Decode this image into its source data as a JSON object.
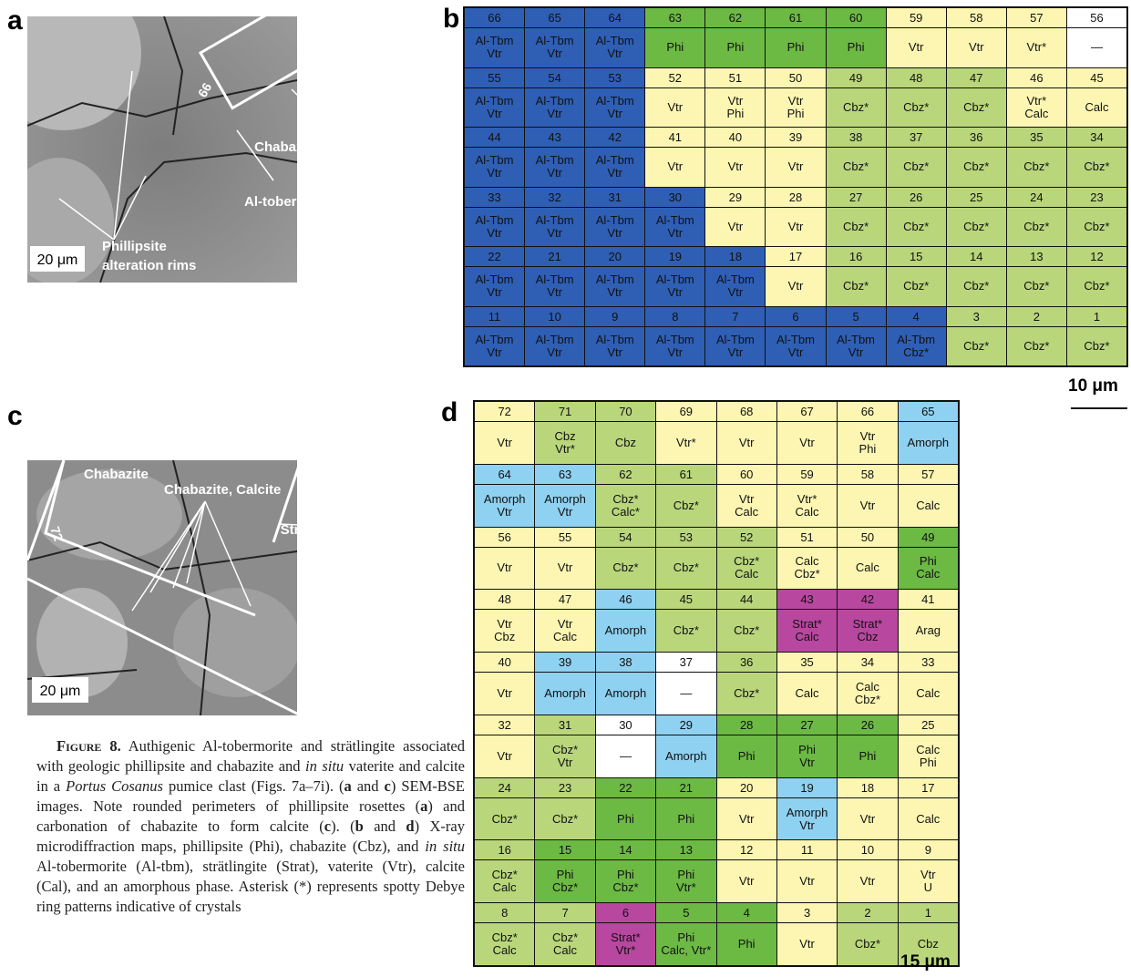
{
  "panel_a": {
    "label": "a",
    "annotations": {
      "box": "66",
      "chabazite": "Chabazite",
      "tobermorite": "Al-tobermorite",
      "phillipsite": "Phillipsite",
      "phillipsite2": "alteration rims",
      "scale": "20 μm"
    }
  },
  "panel_b": {
    "label": "b",
    "scale": "10 μm",
    "rows": [
      [
        {
          "n": 66,
          "t": "Al-Tbm\nVtr",
          "c": "#2f5fb5"
        },
        {
          "n": 65,
          "t": "Al-Tbm\nVtr",
          "c": "#2f5fb5"
        },
        {
          "n": 64,
          "t": "Al-Tbm\nVtr",
          "c": "#2f5fb5"
        },
        {
          "n": 63,
          "t": "Phi",
          "c": "#6cb944"
        },
        {
          "n": 62,
          "t": "Phi",
          "c": "#6cb944"
        },
        {
          "n": 61,
          "t": "Phi",
          "c": "#6cb944"
        },
        {
          "n": 60,
          "t": "Phi",
          "c": "#6cb944"
        },
        {
          "n": 59,
          "t": "Vtr",
          "c": "#fdf6b2"
        },
        {
          "n": 58,
          "t": "Vtr",
          "c": "#fdf6b2"
        },
        {
          "n": 57,
          "t": "Vtr*",
          "c": "#fdf6b2"
        },
        {
          "n": 56,
          "t": "—",
          "c": "#ffffff"
        }
      ],
      [
        {
          "n": 55,
          "t": "Al-Tbm\nVtr",
          "c": "#2f5fb5"
        },
        {
          "n": 54,
          "t": "Al-Tbm\nVtr",
          "c": "#2f5fb5"
        },
        {
          "n": 53,
          "t": "Al-Tbm\nVtr",
          "c": "#2f5fb5"
        },
        {
          "n": 52,
          "t": "Vtr",
          "c": "#fdf6b2"
        },
        {
          "n": 51,
          "t": "Vtr\nPhi",
          "c": "#fdf6b2"
        },
        {
          "n": 50,
          "t": "Vtr\nPhi",
          "c": "#fdf6b2"
        },
        {
          "n": 49,
          "t": "Cbz*",
          "c": "#b9d67b"
        },
        {
          "n": 48,
          "t": "Cbz*",
          "c": "#b9d67b"
        },
        {
          "n": 47,
          "t": "Cbz*",
          "c": "#b9d67b"
        },
        {
          "n": 46,
          "t": "Vtr*\nCalc",
          "c": "#fdf6b2"
        },
        {
          "n": 45,
          "t": "Calc",
          "c": "#fdf6b2"
        }
      ],
      [
        {
          "n": 44,
          "t": "Al-Tbm\nVtr",
          "c": "#2f5fb5"
        },
        {
          "n": 43,
          "t": "Al-Tbm\nVtr",
          "c": "#2f5fb5"
        },
        {
          "n": 42,
          "t": "Al-Tbm\nVtr",
          "c": "#2f5fb5"
        },
        {
          "n": 41,
          "t": "Vtr",
          "c": "#fdf6b2"
        },
        {
          "n": 40,
          "t": "Vtr",
          "c": "#fdf6b2"
        },
        {
          "n": 39,
          "t": "Vtr",
          "c": "#fdf6b2"
        },
        {
          "n": 38,
          "t": "Cbz*",
          "c": "#b9d67b"
        },
        {
          "n": 37,
          "t": "Cbz*",
          "c": "#b9d67b"
        },
        {
          "n": 36,
          "t": "Cbz*",
          "c": "#b9d67b"
        },
        {
          "n": 35,
          "t": "Cbz*",
          "c": "#b9d67b"
        },
        {
          "n": 34,
          "t": "Cbz*",
          "c": "#b9d67b"
        }
      ],
      [
        {
          "n": 33,
          "t": "Al-Tbm\nVtr",
          "c": "#2f5fb5"
        },
        {
          "n": 32,
          "t": "Al-Tbm\nVtr",
          "c": "#2f5fb5"
        },
        {
          "n": 31,
          "t": "Al-Tbm\nVtr",
          "c": "#2f5fb5"
        },
        {
          "n": 30,
          "t": "Al-Tbm\nVtr",
          "c": "#2f5fb5"
        },
        {
          "n": 29,
          "t": "Vtr",
          "c": "#fdf6b2"
        },
        {
          "n": 28,
          "t": "Vtr",
          "c": "#fdf6b2"
        },
        {
          "n": 27,
          "t": "Cbz*",
          "c": "#b9d67b"
        },
        {
          "n": 26,
          "t": "Cbz*",
          "c": "#b9d67b"
        },
        {
          "n": 25,
          "t": "Cbz*",
          "c": "#b9d67b"
        },
        {
          "n": 24,
          "t": "Cbz*",
          "c": "#b9d67b"
        },
        {
          "n": 23,
          "t": "Cbz*",
          "c": "#b9d67b"
        }
      ],
      [
        {
          "n": 22,
          "t": "Al-Tbm\nVtr",
          "c": "#2f5fb5"
        },
        {
          "n": 21,
          "t": "Al-Tbm\nVtr",
          "c": "#2f5fb5"
        },
        {
          "n": 20,
          "t": "Al-Tbm\nVtr",
          "c": "#2f5fb5"
        },
        {
          "n": 19,
          "t": "Al-Tbm\nVtr",
          "c": "#2f5fb5"
        },
        {
          "n": 18,
          "t": "Al-Tbm\nVtr",
          "c": "#2f5fb5"
        },
        {
          "n": 17,
          "t": "Vtr",
          "c": "#fdf6b2"
        },
        {
          "n": 16,
          "t": "Cbz*",
          "c": "#b9d67b"
        },
        {
          "n": 15,
          "t": "Cbz*",
          "c": "#b9d67b"
        },
        {
          "n": 14,
          "t": "Cbz*",
          "c": "#b9d67b"
        },
        {
          "n": 13,
          "t": "Cbz*",
          "c": "#b9d67b"
        },
        {
          "n": 12,
          "t": "Cbz*",
          "c": "#b9d67b"
        }
      ],
      [
        {
          "n": 11,
          "t": "Al-Tbm\nVtr",
          "c": "#2f5fb5"
        },
        {
          "n": 10,
          "t": "Al-Tbm\nVtr",
          "c": "#2f5fb5"
        },
        {
          "n": 9,
          "t": "Al-Tbm\nVtr",
          "c": "#2f5fb5"
        },
        {
          "n": 8,
          "t": "Al-Tbm\nVtr",
          "c": "#2f5fb5"
        },
        {
          "n": 7,
          "t": "Al-Tbm\nVtr",
          "c": "#2f5fb5"
        },
        {
          "n": 6,
          "t": "Al-Tbm\nVtr",
          "c": "#2f5fb5"
        },
        {
          "n": 5,
          "t": "Al-Tbm\nVtr",
          "c": "#2f5fb5"
        },
        {
          "n": 4,
          "t": "Al-Tbm\nCbz*",
          "c": "#2f5fb5"
        },
        {
          "n": 3,
          "t": "Cbz*",
          "c": "#b9d67b"
        },
        {
          "n": 2,
          "t": "Cbz*",
          "c": "#b9d67b"
        },
        {
          "n": 1,
          "t": "Cbz*",
          "c": "#b9d67b"
        }
      ]
    ]
  },
  "panel_c": {
    "label": "c",
    "annotations": {
      "box": "72",
      "chabazite": "Chabazite",
      "chab_calc": "Chabazite, Calcite",
      "stratlingite": "Strätlingite",
      "scale": "20 μm"
    }
  },
  "panel_d": {
    "label": "d",
    "scale": "15 μm",
    "rows": [
      [
        {
          "n": 72,
          "t": "Vtr",
          "c": "#fdf6b2"
        },
        {
          "n": 71,
          "t": "Cbz\nVtr*",
          "c": "#b9d67b"
        },
        {
          "n": 70,
          "t": "Cbz",
          "c": "#b9d67b"
        },
        {
          "n": 69,
          "t": "Vtr*",
          "c": "#fdf6b2"
        },
        {
          "n": 68,
          "t": "Vtr",
          "c": "#fdf6b2"
        },
        {
          "n": 67,
          "t": "Vtr",
          "c": "#fdf6b2"
        },
        {
          "n": 66,
          "t": "Vtr\nPhi",
          "c": "#fdf6b2"
        },
        {
          "n": 65,
          "t": "Amorph",
          "c": "#8fd1f0"
        }
      ],
      [
        {
          "n": 64,
          "t": "Amorph\nVtr",
          "c": "#8fd1f0"
        },
        {
          "n": 63,
          "t": "Amorph\nVtr",
          "c": "#8fd1f0"
        },
        {
          "n": 62,
          "t": "Cbz*\nCalc*",
          "c": "#b9d67b"
        },
        {
          "n": 61,
          "t": "Cbz*",
          "c": "#b9d67b"
        },
        {
          "n": 60,
          "t": "Vtr\nCalc",
          "c": "#fdf6b2"
        },
        {
          "n": 59,
          "t": "Vtr*\nCalc",
          "c": "#fdf6b2"
        },
        {
          "n": 58,
          "t": "Vtr",
          "c": "#fdf6b2"
        },
        {
          "n": 57,
          "t": "Calc",
          "c": "#fdf6b2"
        }
      ],
      [
        {
          "n": 56,
          "t": "Vtr",
          "c": "#fdf6b2"
        },
        {
          "n": 55,
          "t": "Vtr",
          "c": "#fdf6b2"
        },
        {
          "n": 54,
          "t": "Cbz*",
          "c": "#b9d67b"
        },
        {
          "n": 53,
          "t": "Cbz*",
          "c": "#b9d67b"
        },
        {
          "n": 52,
          "t": "Cbz*\nCalc",
          "c": "#b9d67b"
        },
        {
          "n": 51,
          "t": "Calc\nCbz*",
          "c": "#fdf6b2"
        },
        {
          "n": 50,
          "t": "Calc",
          "c": "#fdf6b2"
        },
        {
          "n": 49,
          "t": "Phi\nCalc",
          "c": "#6cb944"
        }
      ],
      [
        {
          "n": 48,
          "t": "Vtr\nCbz",
          "c": "#fdf6b2"
        },
        {
          "n": 47,
          "t": "Vtr\nCalc",
          "c": "#fdf6b2"
        },
        {
          "n": 46,
          "t": "Amorph",
          "c": "#8fd1f0"
        },
        {
          "n": 45,
          "t": "Cbz*",
          "c": "#b9d67b"
        },
        {
          "n": 44,
          "t": "Cbz*",
          "c": "#b9d67b"
        },
        {
          "n": 43,
          "t": "Strat*\nCalc",
          "c": "#b8479f"
        },
        {
          "n": 42,
          "t": "Strat*\nCbz",
          "c": "#b8479f"
        },
        {
          "n": 41,
          "t": "Arag",
          "c": "#fdf6b2"
        }
      ],
      [
        {
          "n": 40,
          "t": "Vtr",
          "c": "#fdf6b2"
        },
        {
          "n": 39,
          "t": "Amorph",
          "c": "#8fd1f0"
        },
        {
          "n": 38,
          "t": "Amorph",
          "c": "#8fd1f0"
        },
        {
          "n": 37,
          "t": "—",
          "c": "#ffffff"
        },
        {
          "n": 36,
          "t": "Cbz*",
          "c": "#b9d67b"
        },
        {
          "n": 35,
          "t": "Calc",
          "c": "#fdf6b2"
        },
        {
          "n": 34,
          "t": "Calc\nCbz*",
          "c": "#fdf6b2"
        },
        {
          "n": 33,
          "t": "Calc",
          "c": "#fdf6b2"
        }
      ],
      [
        {
          "n": 32,
          "t": "Vtr",
          "c": "#fdf6b2"
        },
        {
          "n": 31,
          "t": "Cbz*\nVtr",
          "c": "#b9d67b"
        },
        {
          "n": 30,
          "t": "—",
          "c": "#ffffff"
        },
        {
          "n": 29,
          "t": "Amorph",
          "c": "#8fd1f0"
        },
        {
          "n": 28,
          "t": "Phi",
          "c": "#6cb944"
        },
        {
          "n": 27,
          "t": "Phi\nVtr",
          "c": "#6cb944"
        },
        {
          "n": 26,
          "t": "Phi",
          "c": "#6cb944"
        },
        {
          "n": 25,
          "t": "Calc\nPhi",
          "c": "#fdf6b2"
        }
      ],
      [
        {
          "n": 24,
          "t": "Cbz*",
          "c": "#b9d67b"
        },
        {
          "n": 23,
          "t": "Cbz*",
          "c": "#b9d67b"
        },
        {
          "n": 22,
          "t": "Phi",
          "c": "#6cb944"
        },
        {
          "n": 21,
          "t": "Phi",
          "c": "#6cb944"
        },
        {
          "n": 20,
          "t": "Vtr",
          "c": "#fdf6b2"
        },
        {
          "n": 19,
          "t": "Amorph\nVtr",
          "c": "#8fd1f0"
        },
        {
          "n": 18,
          "t": "Vtr",
          "c": "#fdf6b2"
        },
        {
          "n": 17,
          "t": "Calc",
          "c": "#fdf6b2"
        }
      ],
      [
        {
          "n": 16,
          "t": "Cbz*\nCalc",
          "c": "#b9d67b"
        },
        {
          "n": 15,
          "t": "Phi\nCbz*",
          "c": "#6cb944"
        },
        {
          "n": 14,
          "t": "Phi\nCbz*",
          "c": "#6cb944"
        },
        {
          "n": 13,
          "t": "Phi\nVtr*",
          "c": "#6cb944"
        },
        {
          "n": 12,
          "t": "Vtr",
          "c": "#fdf6b2"
        },
        {
          "n": 11,
          "t": "Vtr",
          "c": "#fdf6b2"
        },
        {
          "n": 10,
          "t": "Vtr",
          "c": "#fdf6b2"
        },
        {
          "n": 9,
          "t": "Vtr\nU",
          "c": "#fdf6b2"
        }
      ],
      [
        {
          "n": 8,
          "t": "Cbz*\nCalc",
          "c": "#b9d67b"
        },
        {
          "n": 7,
          "t": "Cbz*\nCalc",
          "c": "#b9d67b"
        },
        {
          "n": 6,
          "t": "Strat*\nVtr*",
          "c": "#b8479f"
        },
        {
          "n": 5,
          "t": "Phi\nCalc, Vtr*",
          "c": "#6cb944"
        },
        {
          "n": 4,
          "t": "Phi",
          "c": "#6cb944"
        },
        {
          "n": 3,
          "t": "Vtr",
          "c": "#fdf6b2"
        },
        {
          "n": 2,
          "t": "Cbz*",
          "c": "#b9d67b"
        },
        {
          "n": 1,
          "t": "Cbz",
          "c": "#b9d67b"
        }
      ]
    ]
  },
  "caption": {
    "parts": [
      "Figure 8.",
      " Authigenic Al-tobermorite and strätlingite associated with geologic phillipsite and chabazite and ",
      "in situ",
      " vaterite and calcite in a ",
      "Portus Cosanus",
      " pumice clast (Figs. 7a–7i). (",
      "a",
      " and ",
      "c",
      ") SEM-BSE images. Note rounded perimeters of phillipsite rosettes (",
      "a",
      ") and carbonation of chabazite to form calcite (",
      "c",
      "). (",
      "b",
      " and ",
      "d",
      ") X-ray microdiffraction maps, phillipsite (Phi), chabazite (Cbz), and ",
      "in situ",
      " Al-tobermorite (Al-tbm), strätlingite (Strat), vaterite (Vtr), calcite (Cal), and an amorphous phase. Asterisk (*) represents spotty Debye ring patterns indicative of crystals"
    ]
  }
}
